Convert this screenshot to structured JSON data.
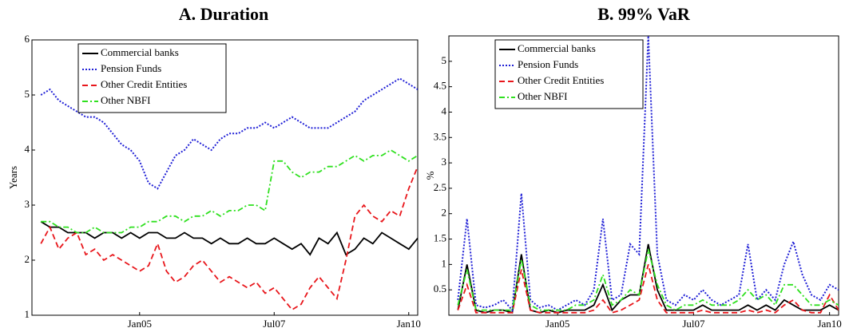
{
  "chart_data": [
    {
      "type": "line",
      "title": "A. Duration",
      "ylabel": "Years",
      "x": [
        "2003-03",
        "2003-05",
        "2003-07",
        "2003-09",
        "2003-11",
        "2004-01",
        "2004-03",
        "2004-05",
        "2004-07",
        "2004-09",
        "2004-11",
        "2005-01",
        "2005-03",
        "2005-05",
        "2005-07",
        "2005-09",
        "2005-11",
        "2006-01",
        "2006-03",
        "2006-05",
        "2006-07",
        "2006-09",
        "2006-11",
        "2007-01",
        "2007-03",
        "2007-05",
        "2007-07",
        "2007-09",
        "2007-11",
        "2008-01",
        "2008-03",
        "2008-05",
        "2008-07",
        "2008-09",
        "2008-11",
        "2009-01",
        "2009-03",
        "2009-05",
        "2009-07",
        "2009-09",
        "2009-11",
        "2010-01",
        "2010-03"
      ],
      "xlim": [
        "2003-01",
        "2010-03"
      ],
      "xticks": [
        {
          "value": "2005-01",
          "label": "Jan05"
        },
        {
          "value": "2007-07",
          "label": "Jul07"
        },
        {
          "value": "2010-01",
          "label": "Jan10"
        }
      ],
      "ylim": [
        1,
        6
      ],
      "yticks": [
        1,
        2,
        3,
        4,
        5,
        6
      ],
      "legend": "upper left",
      "series": [
        {
          "name": "Commercial banks",
          "color": "#000000",
          "dash": "solid",
          "values": [
            2.7,
            2.6,
            2.6,
            2.5,
            2.5,
            2.5,
            2.4,
            2.5,
            2.5,
            2.4,
            2.5,
            2.4,
            2.5,
            2.5,
            2.4,
            2.4,
            2.5,
            2.4,
            2.4,
            2.3,
            2.4,
            2.3,
            2.3,
            2.4,
            2.3,
            2.3,
            2.4,
            2.3,
            2.2,
            2.3,
            2.1,
            2.4,
            2.3,
            2.5,
            2.1,
            2.2,
            2.4,
            2.3,
            2.5,
            2.4,
            2.3,
            2.2,
            2.4
          ]
        },
        {
          "name": "Pension Funds",
          "color": "#1f1fd6",
          "dash": "dotted",
          "values": [
            5.0,
            5.1,
            4.9,
            4.8,
            4.7,
            4.6,
            4.6,
            4.5,
            4.3,
            4.1,
            4.0,
            3.8,
            3.4,
            3.3,
            3.6,
            3.9,
            4.0,
            4.2,
            4.1,
            4.0,
            4.2,
            4.3,
            4.3,
            4.4,
            4.4,
            4.5,
            4.4,
            4.5,
            4.6,
            4.5,
            4.4,
            4.4,
            4.4,
            4.5,
            4.6,
            4.7,
            4.9,
            5.0,
            5.1,
            5.2,
            5.3,
            5.2,
            5.1
          ]
        },
        {
          "name": "Other Credit Entities",
          "color": "#e8161b",
          "dash": "dashed",
          "values": [
            2.3,
            2.6,
            2.2,
            2.4,
            2.5,
            2.1,
            2.2,
            2.0,
            2.1,
            2.0,
            1.9,
            1.8,
            1.9,
            2.3,
            1.8,
            1.6,
            1.7,
            1.9,
            2.0,
            1.8,
            1.6,
            1.7,
            1.6,
            1.5,
            1.6,
            1.4,
            1.5,
            1.3,
            1.1,
            1.2,
            1.5,
            1.7,
            1.5,
            1.3,
            2.0,
            2.8,
            3.0,
            2.8,
            2.7,
            2.9,
            2.8,
            3.3,
            3.7
          ]
        },
        {
          "name": "Other NBFI",
          "color": "#2fe01f",
          "dash": "dashdot",
          "values": [
            2.7,
            2.7,
            2.6,
            2.6,
            2.5,
            2.5,
            2.6,
            2.5,
            2.5,
            2.5,
            2.6,
            2.6,
            2.7,
            2.7,
            2.8,
            2.8,
            2.7,
            2.8,
            2.8,
            2.9,
            2.8,
            2.9,
            2.9,
            3.0,
            3.0,
            2.9,
            3.8,
            3.8,
            3.6,
            3.5,
            3.6,
            3.6,
            3.7,
            3.7,
            3.8,
            3.9,
            3.8,
            3.9,
            3.9,
            4.0,
            3.9,
            3.8,
            3.9
          ]
        }
      ]
    },
    {
      "type": "line",
      "title": "B. 99% VaR",
      "ylabel": "%",
      "x": [
        "2003-03",
        "2003-05",
        "2003-07",
        "2003-09",
        "2003-11",
        "2004-01",
        "2004-03",
        "2004-05",
        "2004-07",
        "2004-09",
        "2004-11",
        "2005-01",
        "2005-03",
        "2005-05",
        "2005-07",
        "2005-09",
        "2005-11",
        "2006-01",
        "2006-03",
        "2006-05",
        "2006-07",
        "2006-09",
        "2006-11",
        "2007-01",
        "2007-03",
        "2007-05",
        "2007-07",
        "2007-09",
        "2007-11",
        "2008-01",
        "2008-03",
        "2008-05",
        "2008-07",
        "2008-09",
        "2008-11",
        "2009-01",
        "2009-03",
        "2009-05",
        "2009-07",
        "2009-09",
        "2009-11",
        "2010-01",
        "2010-03"
      ],
      "xlim": [
        "2003-01",
        "2010-03"
      ],
      "xticks": [
        {
          "value": "2005-01",
          "label": "Jan05"
        },
        {
          "value": "2007-07",
          "label": "Jul07"
        },
        {
          "value": "2010-01",
          "label": "Jan10"
        }
      ],
      "ylim": [
        0,
        5.5
      ],
      "yticks": [
        0.5,
        1,
        1.5,
        2,
        2.5,
        3,
        3.5,
        4,
        4.5,
        5
      ],
      "legend": "upper left",
      "series": [
        {
          "name": "Commercial banks",
          "color": "#000000",
          "dash": "solid",
          "values": [
            0.1,
            1.0,
            0.1,
            0.05,
            0.1,
            0.1,
            0.05,
            1.2,
            0.1,
            0.05,
            0.1,
            0.05,
            0.1,
            0.1,
            0.1,
            0.2,
            0.6,
            0.1,
            0.3,
            0.4,
            0.4,
            1.4,
            0.5,
            0.1,
            0.1,
            0.1,
            0.1,
            0.2,
            0.1,
            0.1,
            0.1,
            0.1,
            0.2,
            0.1,
            0.2,
            0.1,
            0.3,
            0.2,
            0.1,
            0.1,
            0.1,
            0.2,
            0.1
          ]
        },
        {
          "name": "Pension Funds",
          "color": "#1f1fd6",
          "dash": "dotted",
          "values": [
            0.3,
            1.9,
            0.2,
            0.15,
            0.2,
            0.3,
            0.1,
            2.4,
            0.3,
            0.15,
            0.2,
            0.1,
            0.2,
            0.3,
            0.2,
            0.5,
            1.9,
            0.3,
            0.4,
            1.4,
            1.2,
            5.5,
            1.2,
            0.3,
            0.2,
            0.4,
            0.3,
            0.5,
            0.3,
            0.2,
            0.3,
            0.4,
            1.4,
            0.3,
            0.5,
            0.3,
            1.0,
            1.45,
            0.8,
            0.4,
            0.3,
            0.6,
            0.5
          ]
        },
        {
          "name": "Other Credit Entities",
          "color": "#e8161b",
          "dash": "dashed",
          "values": [
            0.1,
            0.6,
            0.05,
            0.05,
            0.05,
            0.05,
            0.05,
            0.9,
            0.1,
            0.05,
            0.05,
            0.05,
            0.05,
            0.05,
            0.05,
            0.1,
            0.3,
            0.05,
            0.1,
            0.2,
            0.3,
            1.0,
            0.3,
            0.05,
            0.05,
            0.05,
            0.05,
            0.1,
            0.05,
            0.05,
            0.05,
            0.05,
            0.1,
            0.05,
            0.1,
            0.05,
            0.2,
            0.3,
            0.1,
            0.05,
            0.05,
            0.4,
            0.1
          ]
        },
        {
          "name": "Other NBFI",
          "color": "#2fe01f",
          "dash": "dashdot",
          "values": [
            0.2,
            0.9,
            0.1,
            0.1,
            0.1,
            0.1,
            0.1,
            1.1,
            0.2,
            0.1,
            0.1,
            0.1,
            0.1,
            0.2,
            0.2,
            0.3,
            0.8,
            0.2,
            0.3,
            0.5,
            0.4,
            1.3,
            0.6,
            0.2,
            0.1,
            0.2,
            0.2,
            0.3,
            0.2,
            0.2,
            0.2,
            0.3,
            0.5,
            0.3,
            0.4,
            0.2,
            0.6,
            0.6,
            0.4,
            0.2,
            0.2,
            0.3,
            0.2
          ]
        }
      ]
    }
  ]
}
